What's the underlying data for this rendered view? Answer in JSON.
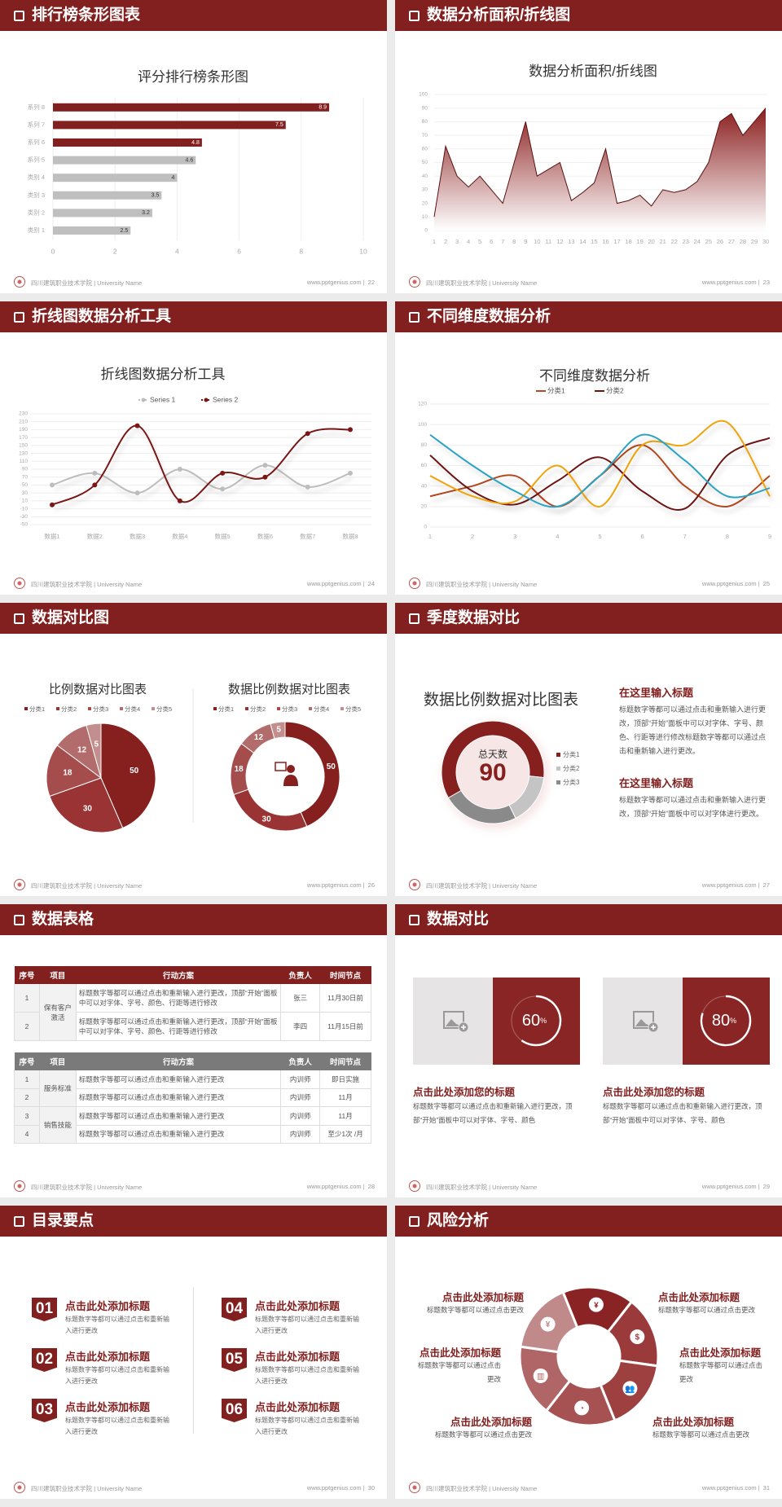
{
  "footer": {
    "school": "四川建筑职业技术学院 | University Name",
    "site": "www.pptgenius.com  |"
  },
  "colors": {
    "brand": "#82201f",
    "grey_bar": "#bfbfbf"
  },
  "slides": [
    {
      "header": "排行榜条形图表",
      "page": "22"
    },
    {
      "header": "数据分析面积/折线图",
      "page": "23"
    },
    {
      "header": "折线图数据分析工具",
      "page": "24"
    },
    {
      "header": "不同维度数据分析",
      "page": "25"
    },
    {
      "header": "数据对比图",
      "page": "26"
    },
    {
      "header": "季度数据对比",
      "page": "27",
      "blocks": [
        {
          "title": "在这里输入标题",
          "text": "标题数字等都可以通过点击和重新输入进行更改，顶部“开始”面板中可以对字体、字号、颜色、行距等进行修改标题数字等都可以通过点击和重新输入进行更改。"
        },
        {
          "title": "在这里输入标题",
          "text": "标题数字等都可以通过点击和重新输入进行更改，顶部“开始”面板中可以对字体进行更改。"
        }
      ]
    },
    {
      "header": "数据表格",
      "page": "28",
      "table_headers": [
        "序号",
        "项目",
        "行动方案",
        "负责人",
        "时间节点"
      ],
      "table1": {
        "group": "保有客户激活",
        "rows": [
          [
            "1",
            "标题数字等都可以通过点击和重新输入进行更改，顶部“开始”面板中可以对字体、字号、颜色、行距等进行修改",
            "张三",
            "11月30日前"
          ],
          [
            "2",
            "标题数字等都可以通过点击和重新输入进行更改，顶部“开始”面板中可以对字体、字号、颜色、行距等进行修改",
            "李四",
            "11月15日前"
          ]
        ]
      },
      "table2": {
        "groups": [
          "服务标准",
          "销售技能"
        ],
        "rows": [
          [
            "1",
            "标题数字等都可以通过点击和重新输入进行更改",
            "内训师",
            "即日实施"
          ],
          [
            "2",
            "标题数字等都可以通过点击和重新输入进行更改",
            "内训师",
            "11月"
          ],
          [
            "3",
            "标题数字等都可以通过点击和重新输入进行更改",
            "内训师",
            "11月"
          ],
          [
            "4",
            "标题数字等都可以通过点击和重新输入进行更改",
            "内训师",
            "至少1次 /月"
          ]
        ]
      }
    },
    {
      "header": "数据对比",
      "page": "29",
      "cards": [
        {
          "percent": 60,
          "percent_label": "60",
          "unit": "%",
          "title": "点击此处添加您的标题",
          "text": "标题数字等都可以通过点击和重新输入进行更改，顶部“开始”面板中可以对字体、字号、颜色",
          "icon": "add-image-icon"
        },
        {
          "percent": 80,
          "percent_label": "80",
          "unit": "%",
          "title": "点击此处添加您的标题",
          "text": "标题数字等都可以通过点击和重新输入进行更改，顶部“开始”面板中可以对字体、字号、颜色",
          "icon": "add-image-icon"
        }
      ]
    },
    {
      "header": "目录要点",
      "page": "30",
      "items": [
        {
          "num": "01",
          "title": "点击此处添加标题",
          "text": "标题数字等都可以通过点击和重新输入进行更改"
        },
        {
          "num": "02",
          "title": "点击此处添加标题",
          "text": "标题数字等都可以通过点击和重新输入进行更改"
        },
        {
          "num": "03",
          "title": "点击此处添加标题",
          "text": "标题数字等都可以通过点击和重新输入进行更改"
        },
        {
          "num": "04",
          "title": "点击此处添加标题",
          "text": "标题数字等都可以通过点击和重新输入进行更改"
        },
        {
          "num": "05",
          "title": "点击此处添加标题",
          "text": "标题数字等都可以通过点击和重新输入进行更改"
        },
        {
          "num": "06",
          "title": "点击此处添加标题",
          "text": "标题数字等都可以通过点击和重新输入进行更改"
        }
      ]
    },
    {
      "header": "风险分析",
      "page": "31",
      "items": [
        {
          "title": "点击此处添加标题",
          "text": "标题数字等都可以通过点击更改"
        },
        {
          "title": "点击此处添加标题",
          "text": "标题数字等都可以通过点击更改"
        },
        {
          "title": "点击此处添加标题",
          "text": "标题数字等都可以通过点击更改"
        },
        {
          "title": "点击此处添加标题",
          "text": "标题数字等都可以通过点击更改"
        },
        {
          "title": "点击此处添加标题",
          "text": "标题数字等都可以通过点击更改"
        },
        {
          "title": "点击此处添加标题",
          "text": "标题数字等都可以通过点击更改"
        }
      ],
      "icons": [
        "money-bag-icon",
        "coins-icon",
        "users-icon",
        "pie-chart-icon",
        "building-icon",
        "hand-money-icon"
      ]
    }
  ],
  "chart_data": [
    {
      "type": "bar",
      "orientation": "horizontal",
      "title": "评分排行榜条形图",
      "categories": [
        "类别 1",
        "类别 2",
        "类别 3",
        "类别 4",
        "系列 5",
        "系列 6",
        "系列 7",
        "系列 8"
      ],
      "values": [
        2.5,
        3.2,
        3.5,
        4,
        4.6,
        4.8,
        7.5,
        8.9
      ],
      "value_labels": [
        "2.5",
        "3.2",
        "3.5",
        "4",
        "4.6",
        "4.8",
        "7.5",
        "8.9"
      ],
      "highlight_colors": [
        "#bfbfbf",
        "#bfbfbf",
        "#bfbfbf",
        "#bfbfbf",
        "#bfbfbf",
        "#82201f",
        "#82201f",
        "#82201f"
      ],
      "xlim": [
        0,
        10
      ],
      "xticks": [
        "0",
        "2",
        "4",
        "6",
        "8",
        "10"
      ],
      "grid": true
    },
    {
      "type": "area",
      "title": "数据分析面积/折线图",
      "x": [
        "1",
        "2",
        "3",
        "4",
        "5",
        "6",
        "7",
        "8",
        "9",
        "10",
        "11",
        "12",
        "13",
        "14",
        "15",
        "16",
        "17",
        "18",
        "19",
        "20",
        "21",
        "22",
        "23",
        "24",
        "25",
        "26",
        "27",
        "28",
        "29",
        "30"
      ],
      "values": [
        10,
        62,
        40,
        32,
        40,
        30,
        20,
        50,
        80,
        40,
        45,
        50,
        22,
        28,
        35,
        60,
        20,
        22,
        26,
        18,
        30,
        28,
        30,
        36,
        50,
        80,
        86,
        70,
        80,
        90
      ],
      "ylim": [
        0,
        100
      ],
      "yticks": [
        "0",
        "10",
        "20",
        "30",
        "40",
        "50",
        "60",
        "70",
        "80",
        "90",
        "100"
      ],
      "grid": true
    },
    {
      "type": "line",
      "smooth": true,
      "title": "折线图数据分析工具",
      "categories": [
        "数据1",
        "数据2",
        "数据3",
        "数据4",
        "数据5",
        "数据6",
        "数据7",
        "数据8"
      ],
      "series": [
        {
          "name": "Series 1",
          "color": "#bdbdbd",
          "values": [
            50,
            80,
            30,
            90,
            40,
            100,
            45,
            80
          ]
        },
        {
          "name": "Series 2",
          "color": "#7a1616",
          "values": [
            0,
            50,
            200,
            10,
            80,
            70,
            180,
            190
          ]
        }
      ],
      "ylim": [
        -50,
        230
      ],
      "yticks": [
        "-50",
        "-30",
        "-10",
        "10",
        "30",
        "50",
        "70",
        "90",
        "110",
        "130",
        "150",
        "170",
        "190",
        "210",
        "230"
      ],
      "legend": "top",
      "grid": true
    },
    {
      "type": "line",
      "smooth": true,
      "title": "不同维度数据分析",
      "categories": [
        "1",
        "2",
        "3",
        "4",
        "5",
        "6",
        "7",
        "8",
        "9"
      ],
      "series": [
        {
          "name": "分类1",
          "color": "#b5461e",
          "values": [
            30,
            40,
            50,
            20,
            50,
            80,
            40,
            20,
            50
          ]
        },
        {
          "name": "分类2",
          "color": "#6e1414",
          "values": [
            70,
            35,
            22,
            45,
            68,
            35,
            18,
            70,
            87
          ]
        },
        {
          "color": "#f0a30a",
          "values": [
            50,
            30,
            25,
            60,
            20,
            80,
            80,
            102,
            30
          ]
        },
        {
          "color": "#2aa3c4",
          "values": [
            90,
            60,
            35,
            20,
            50,
            90,
            65,
            30,
            38
          ]
        }
      ],
      "ylim": [
        0,
        120
      ],
      "yticks": [
        "0",
        "20",
        "40",
        "60",
        "80",
        "100",
        "120"
      ],
      "legend": "top",
      "grid": true
    },
    {
      "type": "pie",
      "title": "比例数据对比图表",
      "categories": [
        "分类1",
        "分类2",
        "分类3",
        "分类4",
        "分类5"
      ],
      "values": [
        50,
        30,
        18,
        12,
        5
      ],
      "labels": [
        "50",
        "30",
        "18",
        "12",
        "5"
      ],
      "colors": [
        "#85201f",
        "#9a3434",
        "#a54d4d",
        "#b26c6c",
        "#c38e8e"
      ],
      "legend": "top"
    },
    {
      "type": "pie",
      "donut": true,
      "title": "数据比例数据对比图表",
      "categories": [
        "分类1",
        "分类2",
        "分类3",
        "分类4",
        "分类5"
      ],
      "values": [
        50,
        30,
        18,
        12,
        5
      ],
      "labels": [
        "50",
        "30",
        "18",
        "12",
        "5"
      ],
      "colors": [
        "#85201f",
        "#9a3434",
        "#a54d4d",
        "#b26c6c",
        "#c38e8e"
      ],
      "legend": "top",
      "center_icon": "presenter-icon"
    },
    {
      "type": "pie",
      "donut": true,
      "title": "数据比例数据对比图表",
      "categories": [
        "分类1",
        "分类2",
        "分类3"
      ],
      "values": [
        60,
        16,
        24
      ],
      "colors": [
        "#85201f",
        "#c4c4c4",
        "#8a8a8a"
      ],
      "legend": "right",
      "center_label": "总天数",
      "center_value": "90"
    }
  ]
}
